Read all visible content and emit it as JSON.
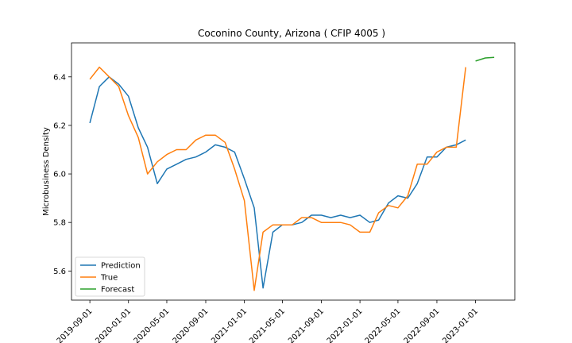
{
  "chart_data": {
    "type": "line",
    "title": "Coconino County, Arizona ( CFIP 4005 )",
    "xlabel": "",
    "ylabel": "Microbusiness Density",
    "xlim": [
      "2019-07-05",
      "2023-05-05"
    ],
    "ylim": [
      5.48,
      6.54
    ],
    "x_ticks": [
      "2019-09-01",
      "2020-01-01",
      "2020-05-01",
      "2020-09-01",
      "2021-01-01",
      "2021-05-01",
      "2021-09-01",
      "2022-01-01",
      "2022-05-01",
      "2022-09-01",
      "2023-01-01"
    ],
    "y_ticks": [
      5.6,
      5.8,
      6.0,
      6.2,
      6.4
    ],
    "y_tick_labels": [
      "5.6",
      "5.8",
      "6.0",
      "6.2",
      "6.4"
    ],
    "grid": false,
    "legend_position": "lower-left",
    "series": [
      {
        "name": "Prediction",
        "color": "#1f77b4",
        "x": [
          "2019-09-01",
          "2019-10-01",
          "2019-11-01",
          "2019-12-01",
          "2020-01-01",
          "2020-02-01",
          "2020-03-01",
          "2020-04-01",
          "2020-05-01",
          "2020-06-01",
          "2020-07-01",
          "2020-08-01",
          "2020-09-01",
          "2020-10-01",
          "2020-11-01",
          "2020-12-01",
          "2021-01-01",
          "2021-02-01",
          "2021-03-01",
          "2021-04-01",
          "2021-05-01",
          "2021-06-01",
          "2021-07-01",
          "2021-08-01",
          "2021-09-01",
          "2021-10-01",
          "2021-11-01",
          "2021-12-01",
          "2022-01-01",
          "2022-02-01",
          "2022-03-01",
          "2022-04-01",
          "2022-05-01",
          "2022-06-01",
          "2022-07-01",
          "2022-08-01",
          "2022-09-01",
          "2022-10-01",
          "2022-11-01",
          "2022-12-01"
        ],
        "values": [
          6.21,
          6.36,
          6.4,
          6.37,
          6.32,
          6.19,
          6.11,
          5.96,
          6.02,
          6.04,
          6.06,
          6.07,
          6.09,
          6.12,
          6.11,
          6.09,
          5.98,
          5.86,
          5.53,
          5.76,
          5.79,
          5.79,
          5.8,
          5.83,
          5.83,
          5.82,
          5.83,
          5.82,
          5.83,
          5.8,
          5.81,
          5.88,
          5.91,
          5.9,
          5.96,
          6.07,
          6.07,
          6.11,
          6.12,
          6.14
        ]
      },
      {
        "name": "True",
        "color": "#ff7f0e",
        "x": [
          "2019-09-01",
          "2019-10-01",
          "2019-11-01",
          "2019-12-01",
          "2020-01-01",
          "2020-02-01",
          "2020-03-01",
          "2020-04-01",
          "2020-05-01",
          "2020-06-01",
          "2020-07-01",
          "2020-08-01",
          "2020-09-01",
          "2020-10-01",
          "2020-11-01",
          "2020-12-01",
          "2021-01-01",
          "2021-02-01",
          "2021-03-01",
          "2021-04-01",
          "2021-05-01",
          "2021-06-01",
          "2021-07-01",
          "2021-08-01",
          "2021-09-01",
          "2021-10-01",
          "2021-11-01",
          "2021-12-01",
          "2022-01-01",
          "2022-02-01",
          "2022-03-01",
          "2022-04-01",
          "2022-05-01",
          "2022-06-01",
          "2022-07-01",
          "2022-08-01",
          "2022-09-01",
          "2022-10-01",
          "2022-11-01",
          "2022-12-01"
        ],
        "values": [
          6.39,
          6.44,
          6.4,
          6.36,
          6.24,
          6.15,
          6.0,
          6.05,
          6.08,
          6.1,
          6.1,
          6.14,
          6.16,
          6.16,
          6.13,
          6.02,
          5.89,
          5.52,
          5.76,
          5.79,
          5.79,
          5.79,
          5.82,
          5.82,
          5.8,
          5.8,
          5.8,
          5.79,
          5.76,
          5.76,
          5.84,
          5.87,
          5.86,
          5.91,
          6.04,
          6.04,
          6.09,
          6.11,
          6.11,
          6.44
        ]
      },
      {
        "name": "Forecast",
        "color": "#2ca02c",
        "x": [
          "2023-01-01",
          "2023-02-01",
          "2023-03-01"
        ],
        "values": [
          6.465,
          6.478,
          6.48
        ]
      }
    ]
  }
}
